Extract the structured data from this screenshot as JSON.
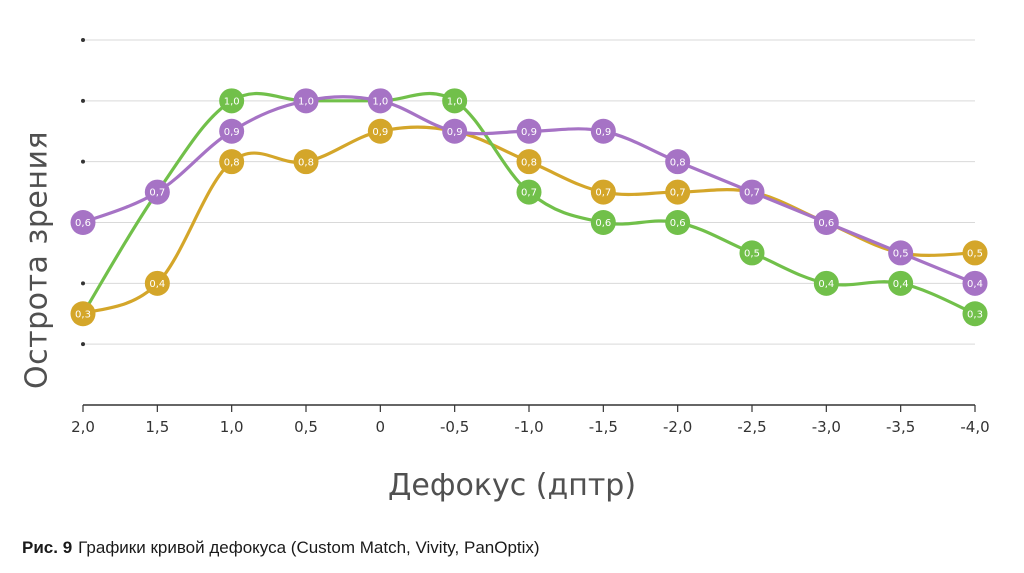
{
  "caption": {
    "prefix": "Рис. 9",
    "text": "Графики кривой дефокуса (Custom Match, Vivity, PanOptix)"
  },
  "chart_data": {
    "type": "line",
    "xlabel": "Дефокус (дптр)",
    "ylabel": "Острота зрения",
    "x": [
      "2,0",
      "1,5",
      "1,0",
      "0,5",
      "0",
      "-0,5",
      "-1,0",
      "-1,5",
      "-2,0",
      "-2,5",
      "-3,0",
      "-3,5",
      "-4,0"
    ],
    "ylim": [
      0,
      1.2
    ],
    "grid": true,
    "legend": "none",
    "series": [
      {
        "color": "#d4a62a",
        "values": [
          0.3,
          0.4,
          0.8,
          0.8,
          0.9,
          0.9,
          0.8,
          0.7,
          0.7,
          0.7,
          0.6,
          0.5,
          0.5
        ],
        "labels": [
          "0,3",
          "0,4",
          "0,8",
          "0,8",
          "0,9",
          "",
          "0,8",
          "0,7",
          "0,7",
          "",
          "",
          "",
          "0,5"
        ]
      },
      {
        "color": "#71c04a",
        "values": [
          0.3,
          0.7,
          1.0,
          1.0,
          1.0,
          1.0,
          0.7,
          0.6,
          0.6,
          0.5,
          0.4,
          0.4,
          0.3
        ],
        "labels": [
          "",
          "",
          "1,0",
          "",
          "",
          "1,0",
          "0,7",
          "0,6",
          "0,6",
          "0,5",
          "0,4",
          "0,4",
          "0,3"
        ]
      },
      {
        "color": "#a673c5",
        "values": [
          0.6,
          0.7,
          0.9,
          1.0,
          1.0,
          0.9,
          0.9,
          0.9,
          0.8,
          0.7,
          0.6,
          0.5,
          0.4
        ],
        "labels": [
          "0,6",
          "0,7",
          "0,9",
          "1,0",
          "1,0",
          "0,9",
          "0,9",
          "0,9",
          "0,8",
          "0,7",
          "0,6",
          "0,5",
          "0,4"
        ]
      }
    ]
  }
}
